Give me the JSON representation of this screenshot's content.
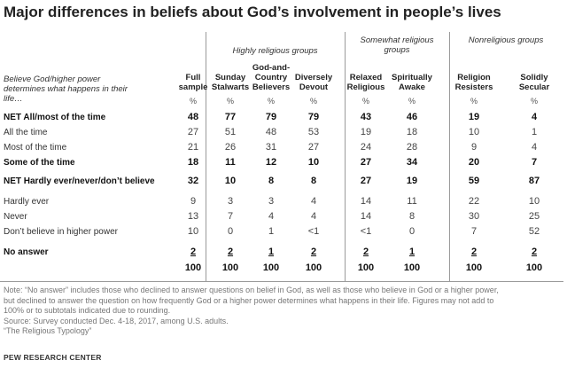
{
  "title": "Major differences in beliefs about God’s involvement in people’s lives",
  "groups": [
    {
      "label": "Highly religious groups"
    },
    {
      "label": "Somewhat religious groups"
    },
    {
      "label": "Nonreligious groups"
    }
  ],
  "row_header": "Believe God/higher power determines what happens in their life…",
  "columns": [
    "Full sample",
    "Sunday Stalwarts",
    "God-and-Country Believers",
    "Diversely Devout",
    "Relaxed Religious",
    "Spiritually Awake",
    "Religion Resisters",
    "Solidly Secular"
  ],
  "pct_symbol": "%",
  "rows": [
    {
      "label": "NET All/most of the time",
      "values": [
        "48",
        "77",
        "79",
        "79",
        "43",
        "46",
        "19",
        "4"
      ]
    },
    {
      "label": "All the time",
      "values": [
        "27",
        "51",
        "48",
        "53",
        "19",
        "18",
        "10",
        "1"
      ]
    },
    {
      "label": "Most of the time",
      "values": [
        "21",
        "26",
        "31",
        "27",
        "24",
        "28",
        "9",
        "4"
      ]
    },
    {
      "label": "Some of the time",
      "values": [
        "18",
        "11",
        "12",
        "10",
        "27",
        "34",
        "20",
        "7"
      ]
    },
    {
      "label": "NET Hardly ever/never/don’t believe",
      "values": [
        "32",
        "10",
        "8",
        "8",
        "27",
        "19",
        "59",
        "87"
      ]
    },
    {
      "label": "Hardly ever",
      "values": [
        "9",
        "3",
        "3",
        "4",
        "14",
        "11",
        "22",
        "10"
      ]
    },
    {
      "label": "Never",
      "values": [
        "13",
        "7",
        "4",
        "4",
        "14",
        "8",
        "30",
        "25"
      ]
    },
    {
      "label": "Don’t believe in higher power",
      "values": [
        "10",
        "0",
        "1",
        "<1",
        "<1",
        "0",
        "7",
        "52"
      ]
    },
    {
      "label": "No answer",
      "values": [
        "2",
        "2",
        "1",
        "2",
        "2",
        "1",
        "2",
        "2"
      ]
    }
  ],
  "totals": [
    "100",
    "100",
    "100",
    "100",
    "100",
    "100",
    "100",
    "100"
  ],
  "notes": [
    "Note: “No answer” includes those who declined to answer questions on belief in God, as well as those who believe in God or a higher power,",
    "but declined to answer the question on how frequently God or a higher power determines what happens in their life. Figures may not add to",
    "100% or to subtotals indicated due to rounding.",
    "Source: Survey conducted Dec. 4-18, 2017, among U.S. adults.",
    "“The Religious Typology”"
  ],
  "source": "PEW RESEARCH CENTER"
}
